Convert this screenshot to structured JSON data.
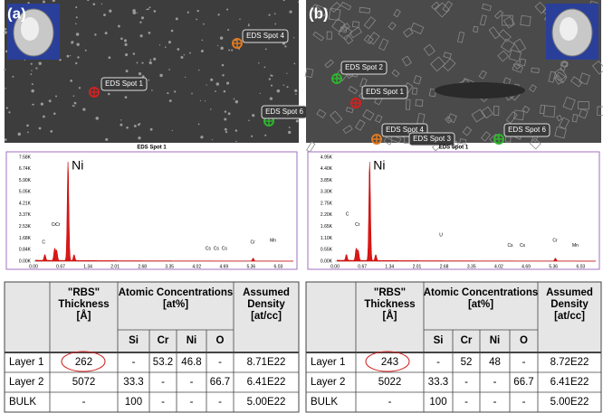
{
  "panels": [
    {
      "label": "(a)",
      "spots": [
        "EDS Spot 4",
        "EDS Spot 1",
        "EDS Spot 6"
      ],
      "caption": "EDS Spot 1",
      "spectrum": {
        "peak_label": "Ni",
        "yticks": [
          "7.58K",
          "6.74K",
          "5.90K",
          "5.05K",
          "4.21K",
          "3.37K",
          "2.53K",
          "1.68K",
          "0.84K",
          "0.00K"
        ],
        "xticks": [
          "0.00",
          "0.67",
          "1.34",
          "2.01",
          "2.68",
          "3.35",
          "4.02",
          "4.69",
          "5.36",
          "6.03"
        ],
        "element_labels": [
          "C",
          "Cr",
          "Cr",
          "Cs",
          "Cs",
          "Cs",
          "Cr",
          "Mn"
        ]
      },
      "table": {
        "header": [
          [
            "\"RBS\"",
            "Thickness",
            "[Å]"
          ],
          [
            "Atomic Concentrations",
            "[at%]"
          ],
          [
            "Assumed",
            "Density",
            "[at/cc]"
          ]
        ],
        "subheader": [
          "Si",
          "Cr",
          "Ni",
          "O"
        ],
        "rows": [
          [
            "Layer 1",
            "262",
            "-",
            "53.2",
            "46.8",
            "-",
            "8.71E22"
          ],
          [
            "Layer 2",
            "5072",
            "33.3",
            "-",
            "-",
            "66.7",
            "6.41E22"
          ],
          [
            "BULK",
            "-",
            "100",
            "-",
            "-",
            "-",
            "5.00E22"
          ]
        ]
      }
    },
    {
      "label": "(b)",
      "spots": [
        "EDS Spot 2",
        "EDS Spot 1",
        "EDS Spot 4",
        "EDS Spot 3",
        "EDS Spot 6"
      ],
      "caption": "EDS Spot 1",
      "spectrum": {
        "peak_label": "Ni",
        "yticks": [
          "4.95K",
          "4.40K",
          "3.85K",
          "3.30K",
          "2.75K",
          "2.20K",
          "1.65K",
          "1.10K",
          "0.55K",
          "0.00K"
        ],
        "xticks": [
          "0.00",
          "0.67",
          "1.34",
          "2.01",
          "2.68",
          "3.35",
          "4.02",
          "4.69",
          "5.36",
          "6.03"
        ],
        "element_labels": [
          "C",
          "Cr",
          "U",
          "Cs",
          "Cs",
          "Cr",
          "Mn"
        ]
      },
      "table": {
        "header": [
          [
            "\"RBS\"",
            "Thickness",
            "[Å]"
          ],
          [
            "Atomic Concentrations",
            "[at%]"
          ],
          [
            "Assumed",
            "Density",
            "[at/cc]"
          ]
        ],
        "subheader": [
          "Si",
          "Cr",
          "Ni",
          "O"
        ],
        "rows": [
          [
            "Layer 1",
            "243",
            "-",
            "52",
            "48",
            "-",
            "8.72E22"
          ],
          [
            "Layer 2",
            "5022",
            "33.3",
            "-",
            "-",
            "66.7",
            "6.41E22"
          ],
          [
            "BULK",
            "-",
            "100",
            "-",
            "-",
            "-",
            "5.00E22"
          ]
        ]
      }
    }
  ]
}
